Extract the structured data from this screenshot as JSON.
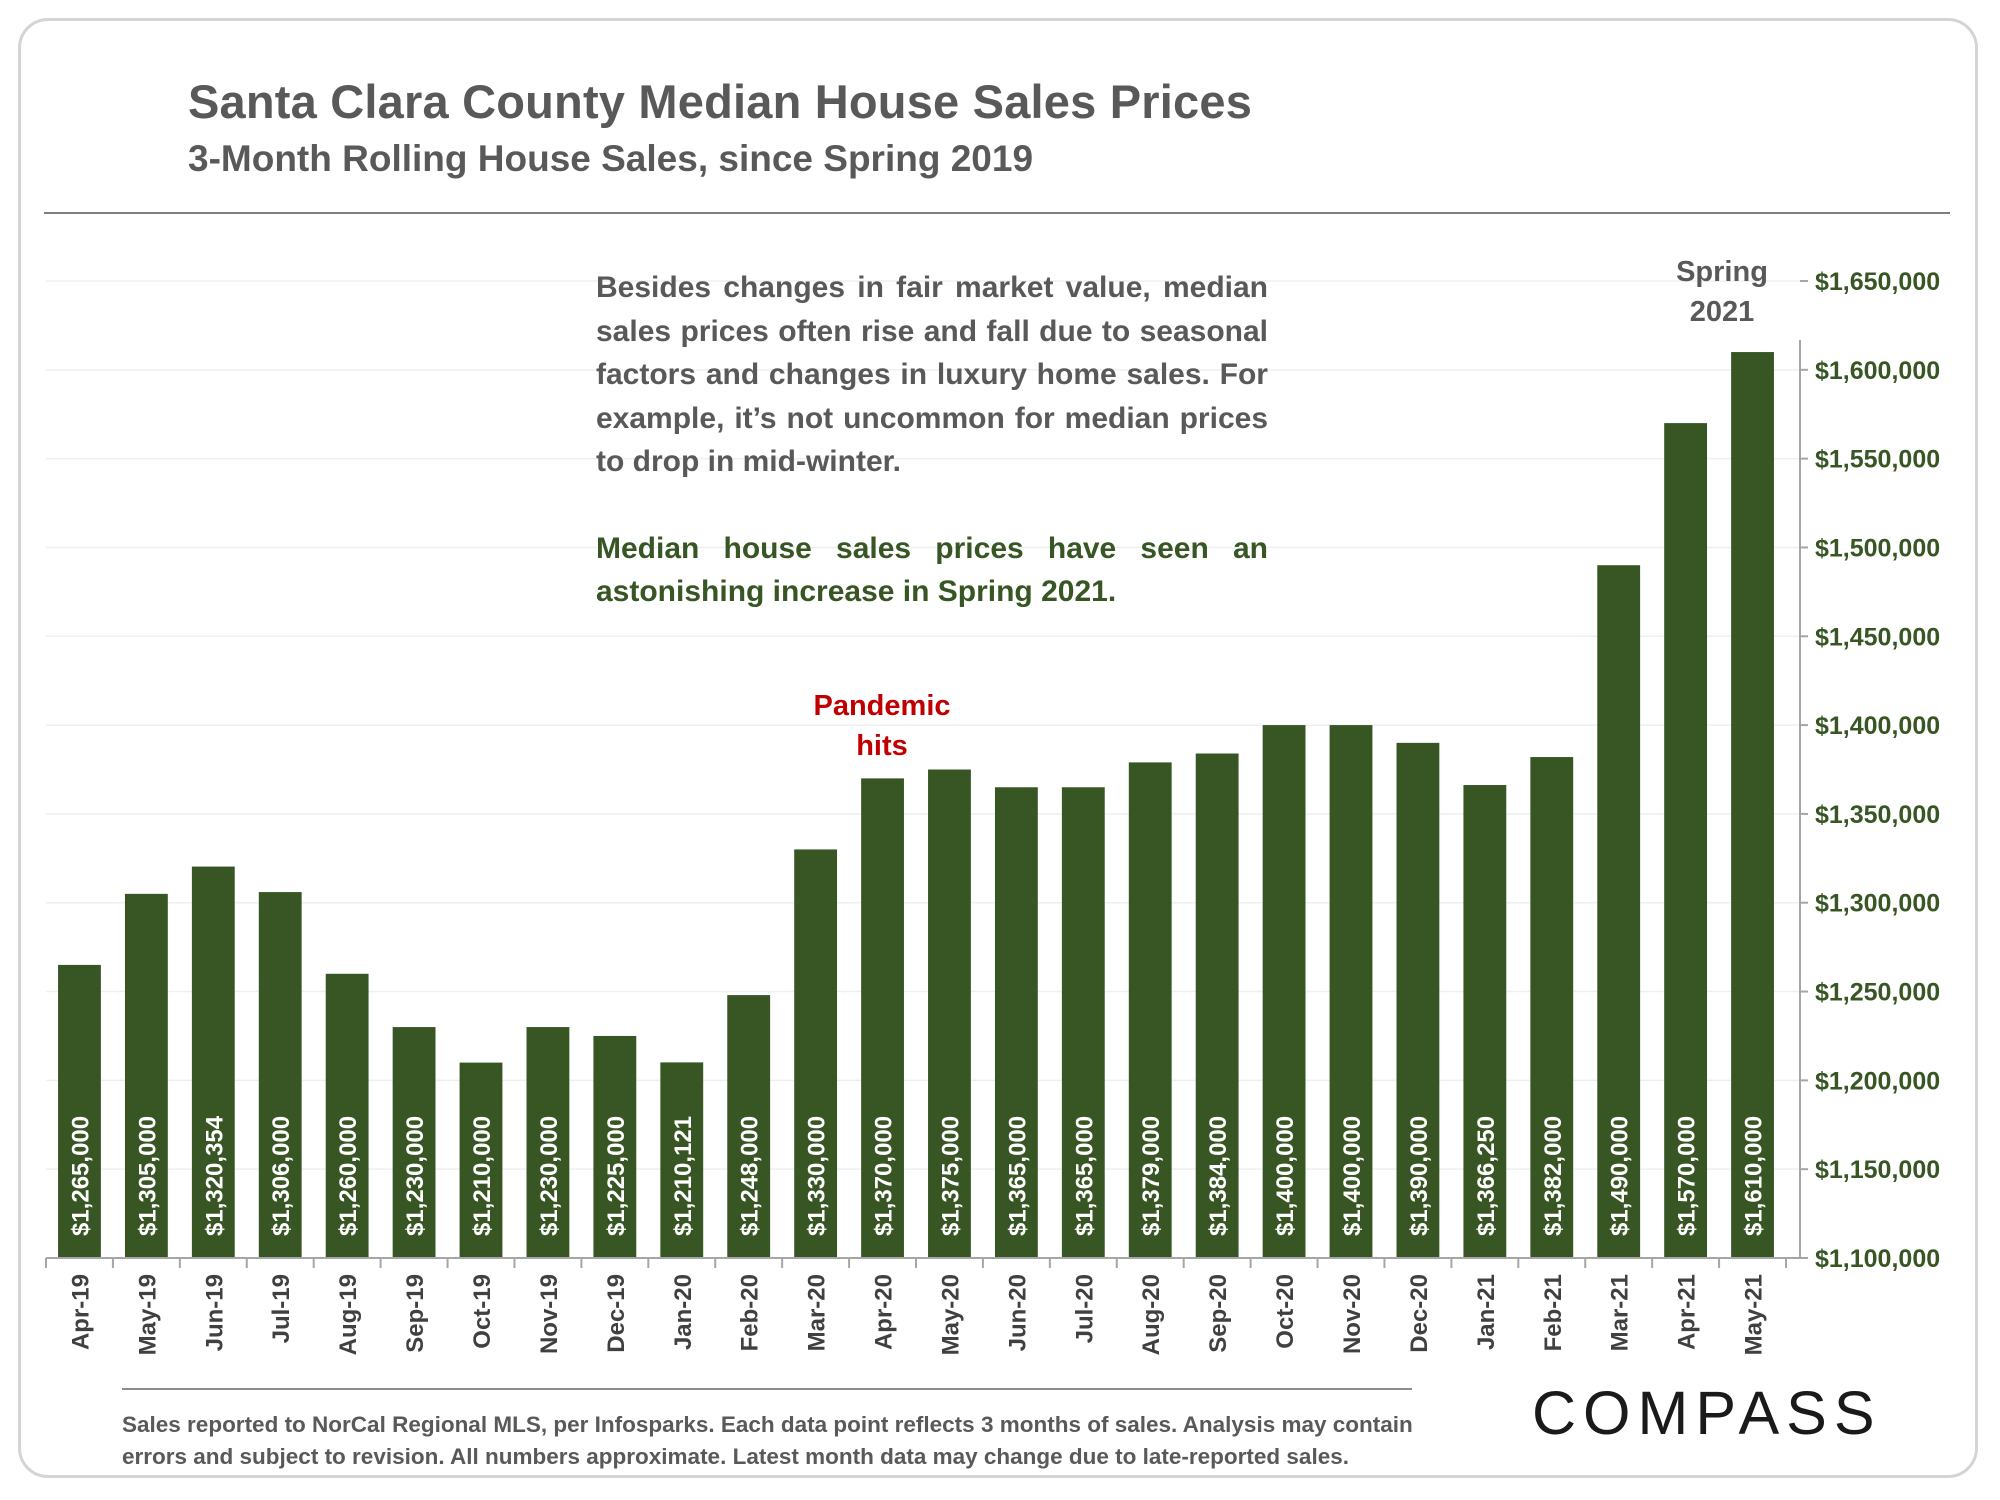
{
  "header": {
    "title": "Santa Clara County Median House Sales Prices",
    "subtitle": "3-Month Rolling House Sales, since Spring 2019"
  },
  "annotations": {
    "note_1": "Besides changes in fair market value, median sales prices often rise and fall due to seasonal factors and changes in luxury home sales. For example, it’s not uncommon for median prices to drop in mid-winter.",
    "note_2": "Median house sales prices have seen an astonishing increase in Spring 2021.",
    "pandemic_line1": "Pandemic",
    "pandemic_line2": "hits",
    "spring_line1": "Spring",
    "spring_line2": "2021"
  },
  "footer": {
    "note_line1": "Sales reported to NorCal Regional MLS, per Infosparks. Each data point reflects 3 months of sales. Analysis may contain",
    "note_line2": "errors and subject to revision. All numbers approximate. Latest month data may change due to late-reported sales.",
    "logo": "COMPASS"
  },
  "colors": {
    "bar": "#375623",
    "axis_label": "#375623",
    "pandemic": "#c00000",
    "text": "#595959",
    "grid": "#efefef"
  },
  "chart_data": {
    "type": "bar",
    "categories": [
      "Apr-19",
      "May-19",
      "Jun-19",
      "Jul-19",
      "Aug-19",
      "Sep-19",
      "Oct-19",
      "Nov-19",
      "Dec-19",
      "Jan-20",
      "Feb-20",
      "Mar-20",
      "Apr-20",
      "May-20",
      "Jun-20",
      "Jul-20",
      "Aug-20",
      "Sep-20",
      "Oct-20",
      "Nov-20",
      "Dec-20",
      "Jan-21",
      "Feb-21",
      "Mar-21",
      "Apr-21",
      "May-21"
    ],
    "values": [
      1265000,
      1305000,
      1320354,
      1306000,
      1260000,
      1230000,
      1210000,
      1230000,
      1225000,
      1210121,
      1248000,
      1330000,
      1370000,
      1375000,
      1365000,
      1365000,
      1379000,
      1384000,
      1400000,
      1400000,
      1390000,
      1366250,
      1382000,
      1490000,
      1570000,
      1610000
    ],
    "data_labels": [
      "$1,265,000",
      "$1,305,000",
      "$1,320,354",
      "$1,306,000",
      "$1,260,000",
      "$1,230,000",
      "$1,210,000",
      "$1,230,000",
      "$1,225,000",
      "$1,210,121",
      "$1,248,000",
      "$1,330,000",
      "$1,370,000",
      "$1,375,000",
      "$1,365,000",
      "$1,365,000",
      "$1,379,000",
      "$1,384,000",
      "$1,400,000",
      "$1,400,000",
      "$1,390,000",
      "$1,366,250",
      "$1,382,000",
      "$1,490,000",
      "$1,570,000",
      "$1,610,000"
    ],
    "y_ticks": [
      1100000,
      1150000,
      1200000,
      1250000,
      1300000,
      1350000,
      1400000,
      1450000,
      1500000,
      1550000,
      1600000,
      1650000
    ],
    "y_tick_labels": [
      "$1,100,000",
      "$1,150,000",
      "$1,200,000",
      "$1,250,000",
      "$1,300,000",
      "$1,350,000",
      "$1,400,000",
      "$1,450,000",
      "$1,500,000",
      "$1,550,000",
      "$1,600,000",
      "$1,650,000"
    ],
    "ylim": [
      1100000,
      1650000
    ],
    "y_axis_position": "right",
    "grid": true,
    "title": "Santa Clara County Median House Sales Prices",
    "xlabel": "",
    "ylabel": ""
  }
}
